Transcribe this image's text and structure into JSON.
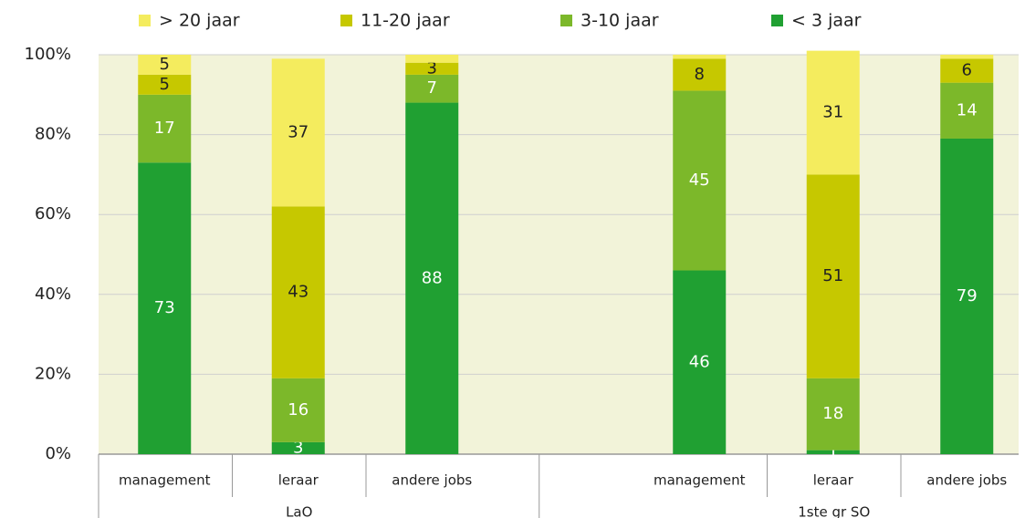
{
  "chart_data": {
    "type": "stacked_bar",
    "categories": [
      "management",
      "leraar",
      "andere jobs",
      null,
      "management",
      "leraar",
      "andere jobs"
    ],
    "groups": [
      "LaO",
      "1ste gr SO"
    ],
    "series": [
      {
        "name": "< 3 jaar",
        "color": "#20a032",
        "label_color": "#ffffff",
        "values": [
          73,
          3,
          88,
          null,
          46,
          1,
          79
        ]
      },
      {
        "name": "3-10 jaar",
        "color": "#7cb82a",
        "label_color": "#ffffff",
        "values": [
          17,
          16,
          7,
          null,
          45,
          18,
          14
        ]
      },
      {
        "name": "11-20 jaar",
        "color": "#c6c800",
        "label_color": "#222222",
        "values": [
          5,
          43,
          3,
          null,
          8,
          51,
          6
        ]
      },
      {
        "name": "> 20 jaar",
        "color": "#f4ec5e",
        "label_color": "#222222",
        "values": [
          5,
          37,
          2,
          null,
          1,
          31,
          1
        ],
        "value_labels": [
          "5",
          "37",
          null,
          null,
          null,
          "31",
          null
        ]
      }
    ],
    "legend_order": "reverse",
    "ylim": [
      0,
      100
    ],
    "yticks": [
      {
        "value": 0,
        "label": "0%"
      },
      {
        "value": 20,
        "label": "20%"
      },
      {
        "value": 40,
        "label": "40%"
      },
      {
        "value": 60,
        "label": "60%"
      },
      {
        "value": 80,
        "label": "80%"
      },
      {
        "value": 100,
        "label": "100%"
      }
    ],
    "grid": true
  }
}
